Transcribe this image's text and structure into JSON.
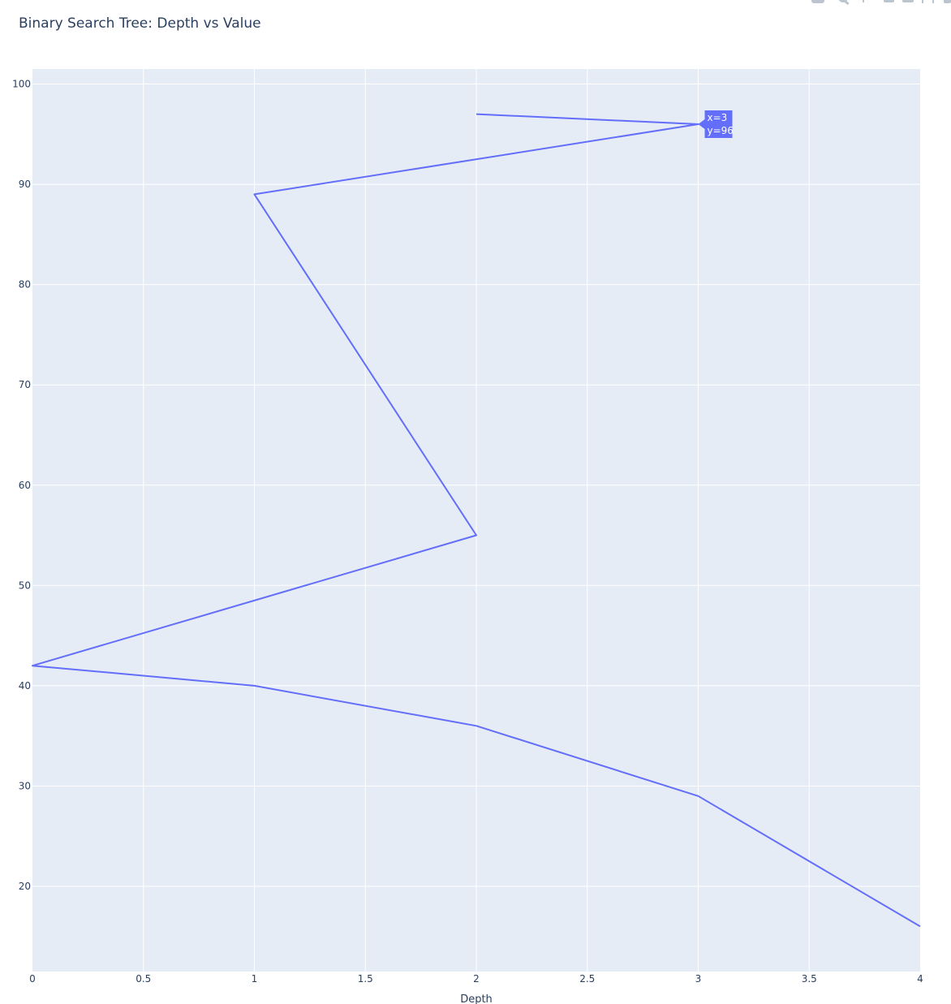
{
  "chart_data": {
    "type": "line",
    "title": "Binary Search Tree: Depth vs Value",
    "xlabel": "Depth",
    "ylabel": "",
    "xlim": [
      0,
      4
    ],
    "ylim": [
      11.5,
      101.5
    ],
    "x_ticks": [
      0,
      0.5,
      1,
      1.5,
      2,
      2.5,
      3,
      3.5,
      4
    ],
    "x_tick_labels": [
      "0",
      "0.5",
      "1",
      "1.5",
      "2",
      "2.5",
      "3",
      "3.5",
      "4"
    ],
    "y_ticks": [
      20,
      30,
      40,
      50,
      60,
      70,
      80,
      90,
      100
    ],
    "y_tick_labels": [
      "20",
      "30",
      "40",
      "50",
      "60",
      "70",
      "80",
      "90",
      "100"
    ],
    "grid": true,
    "series": [
      {
        "x": [
          2,
          3,
          1,
          2,
          0,
          1,
          2,
          3,
          4
        ],
        "y": [
          97,
          96,
          89,
          55,
          42,
          40,
          36,
          29,
          16
        ]
      }
    ],
    "hover_label": {
      "x_value": 3,
      "y_value": 96,
      "line1": "x=3",
      "line2": "y=96"
    },
    "colors": {
      "line": "#636efa",
      "plot_background": "#e5ecf6",
      "grid": "#ffffff",
      "text": "#2a3f5f"
    }
  },
  "modebar": {
    "icons": [
      "camera-icon",
      "zoom-icon",
      "pan-icon",
      "zoom-in-icon",
      "zoom-out-icon",
      "autoscale-icon",
      "reset-axes-icon"
    ]
  }
}
